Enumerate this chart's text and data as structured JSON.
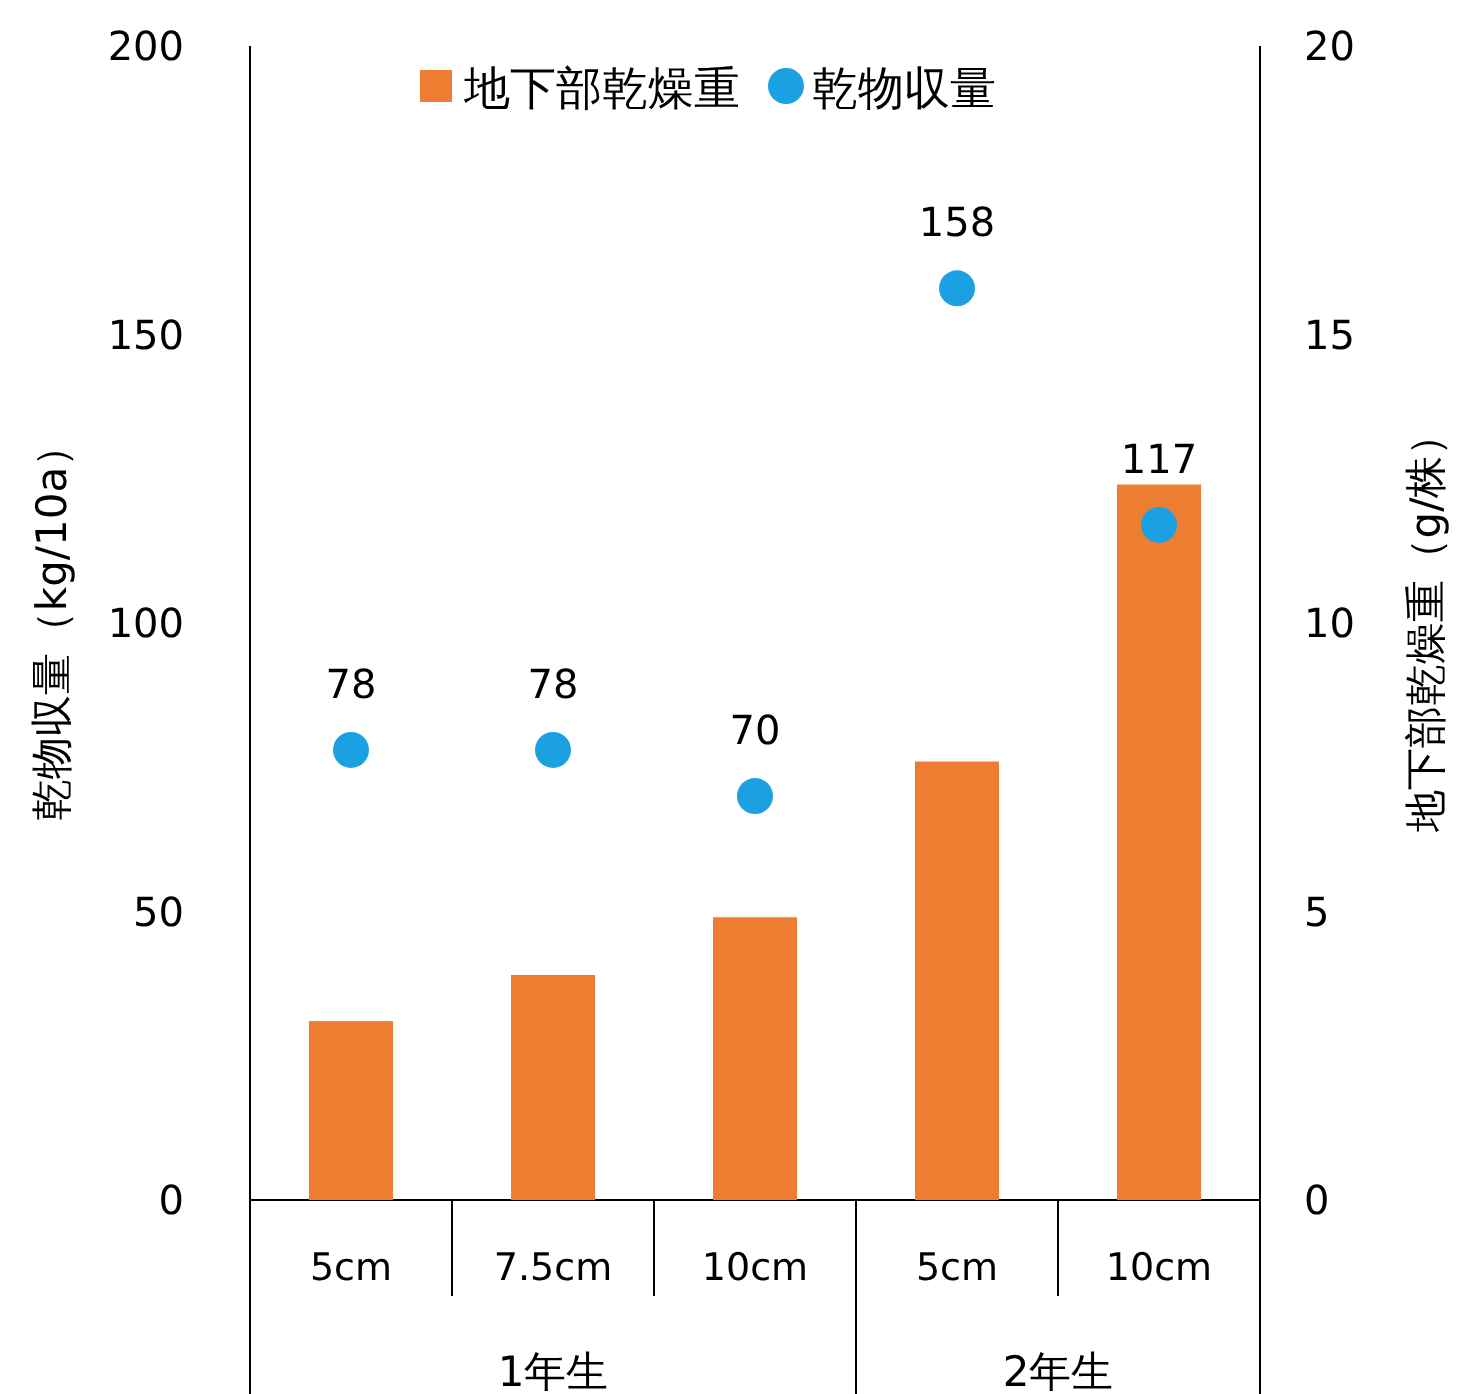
{
  "chart_data": {
    "type": "bar",
    "categories": [
      "5cm",
      "7.5cm",
      "10cm",
      "5cm",
      "10cm"
    ],
    "series": [
      {
        "name": "地下部乾燥重",
        "axis": "y2",
        "color": "#ed7d31",
        "values": [
          3.1,
          3.9,
          4.9,
          7.6,
          12.4
        ]
      },
      {
        "name": "乾物収量",
        "type": "scatter",
        "color": "#1ba1e2",
        "values": [
          78,
          78,
          70,
          158,
          117
        ],
        "value_labels": [
          "78",
          "78",
          "70",
          "158",
          "117"
        ]
      }
    ],
    "marker": "circle",
    "ylim": [
      0,
      200
    ],
    "yticks": [
      0,
      50,
      100,
      150,
      200
    ],
    "y2lim": [
      0,
      20
    ],
    "y2ticks": [
      0,
      5,
      10,
      15,
      20
    ],
    "ylabel": "乾物収量（kg/10a）",
    "y2label": "地下部乾燥重（g/株）",
    "annotations": [
      "1年生",
      "2年生"
    ],
    "legend": "top",
    "grid": false
  }
}
